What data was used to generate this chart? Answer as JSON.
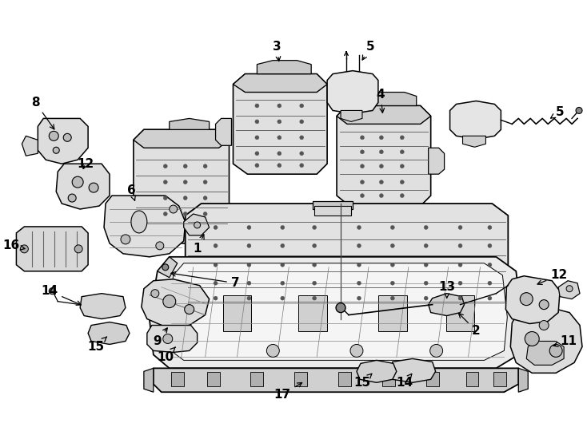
{
  "background_color": "#ffffff",
  "line_color": "#000000",
  "fig_width": 7.34,
  "fig_height": 5.4,
  "dpi": 100,
  "font_size": 11,
  "font_weight": "bold"
}
